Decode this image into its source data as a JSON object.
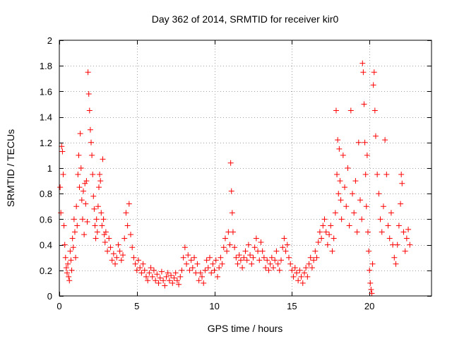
{
  "chart_data": {
    "type": "scatter",
    "title": "Day 362 of 2014, SRMTID for receiver kir0",
    "xlabel": "GPS time / hours",
    "ylabel": "SRMTID / TECUs",
    "xlim": [
      0,
      24
    ],
    "ylim": [
      0,
      2
    ],
    "xticks": [
      0,
      5,
      10,
      15,
      20
    ],
    "xtick_labels": [
      "0",
      "5",
      "10",
      "15",
      "20"
    ],
    "yticks": [
      0,
      0.2,
      0.4,
      0.6,
      0.8,
      1,
      1.2,
      1.4,
      1.6,
      1.8,
      2
    ],
    "ytick_labels": [
      "0",
      "0.2",
      "0.4",
      "0.6",
      "0.8",
      "1",
      "1.2",
      "1.4",
      "1.6",
      "1.8",
      "2"
    ],
    "grid": true,
    "marker": "+",
    "series": [
      {
        "name": "SRMTID",
        "color": "#ff0000",
        "points": [
          [
            0.05,
            0.85
          ],
          [
            0.1,
            0.65
          ],
          [
            0.15,
            1.17
          ],
          [
            0.2,
            1.13
          ],
          [
            0.25,
            0.95
          ],
          [
            0.3,
            0.55
          ],
          [
            0.35,
            0.4
          ],
          [
            0.4,
            0.3
          ],
          [
            0.45,
            0.22
          ],
          [
            0.5,
            0.18
          ],
          [
            0.55,
            0.25
          ],
          [
            0.6,
            0.15
          ],
          [
            0.65,
            0.12
          ],
          [
            0.7,
            0.35
          ],
          [
            0.75,
            0.28
          ],
          [
            0.8,
            0.2
          ],
          [
            0.85,
            0.45
          ],
          [
            0.9,
            0.38
          ],
          [
            0.95,
            0.6
          ],
          [
            1.0,
            0.5
          ],
          [
            1.05,
            0.3
          ],
          [
            1.1,
            0.7
          ],
          [
            1.15,
            0.55
          ],
          [
            1.2,
            0.95
          ],
          [
            1.25,
            1.1
          ],
          [
            1.3,
            0.85
          ],
          [
            1.35,
            1.27
          ],
          [
            1.4,
            1.0
          ],
          [
            1.45,
            0.75
          ],
          [
            1.5,
            0.6
          ],
          [
            1.55,
            0.82
          ],
          [
            1.6,
            0.48
          ],
          [
            1.65,
            0.88
          ],
          [
            1.7,
            0.72
          ],
          [
            1.75,
            0.9
          ],
          [
            1.8,
            0.58
          ],
          [
            1.85,
            1.75
          ],
          [
            1.9,
            1.58
          ],
          [
            1.95,
            1.45
          ],
          [
            2.0,
            1.3
          ],
          [
            2.05,
            1.2
          ],
          [
            2.1,
            1.1
          ],
          [
            2.15,
            0.95
          ],
          [
            2.2,
            0.78
          ],
          [
            2.25,
            0.68
          ],
          [
            2.3,
            0.55
          ],
          [
            2.35,
            0.45
          ],
          [
            2.4,
            0.6
          ],
          [
            2.45,
            0.5
          ],
          [
            2.5,
            0.7
          ],
          [
            2.55,
            0.85
          ],
          [
            2.6,
            0.95
          ],
          [
            2.65,
            0.9
          ],
          [
            2.7,
            0.65
          ],
          [
            2.75,
            0.55
          ],
          [
            2.8,
            1.07
          ],
          [
            2.85,
            0.6
          ],
          [
            2.9,
            0.48
          ],
          [
            2.95,
            0.42
          ],
          [
            3.0,
            0.5
          ],
          [
            3.1,
            0.35
          ],
          [
            3.2,
            0.45
          ],
          [
            3.3,
            0.38
          ],
          [
            3.4,
            0.28
          ],
          [
            3.5,
            0.33
          ],
          [
            3.6,
            0.25
          ],
          [
            3.7,
            0.3
          ],
          [
            3.8,
            0.4
          ],
          [
            3.9,
            0.35
          ],
          [
            4.0,
            0.28
          ],
          [
            4.1,
            0.32
          ],
          [
            4.2,
            0.45
          ],
          [
            4.3,
            0.65
          ],
          [
            4.4,
            0.55
          ],
          [
            4.5,
            0.72
          ],
          [
            4.6,
            0.48
          ],
          [
            4.7,
            0.38
          ],
          [
            4.8,
            0.3
          ],
          [
            4.9,
            0.25
          ],
          [
            5.0,
            0.2
          ],
          [
            5.1,
            0.28
          ],
          [
            5.2,
            0.22
          ],
          [
            5.3,
            0.18
          ],
          [
            5.4,
            0.25
          ],
          [
            5.5,
            0.2
          ],
          [
            5.6,
            0.15
          ],
          [
            5.7,
            0.12
          ],
          [
            5.8,
            0.18
          ],
          [
            5.9,
            0.22
          ],
          [
            6.0,
            0.15
          ],
          [
            6.1,
            0.2
          ],
          [
            6.2,
            0.12
          ],
          [
            6.3,
            0.17
          ],
          [
            6.4,
            0.1
          ],
          [
            6.5,
            0.14
          ],
          [
            6.6,
            0.19
          ],
          [
            6.7,
            0.12
          ],
          [
            6.8,
            0.08
          ],
          [
            6.9,
            0.15
          ],
          [
            7.0,
            0.18
          ],
          [
            7.1,
            0.12
          ],
          [
            7.2,
            0.16
          ],
          [
            7.3,
            0.1
          ],
          [
            7.4,
            0.14
          ],
          [
            7.5,
            0.18
          ],
          [
            7.6,
            0.12
          ],
          [
            7.7,
            0.09
          ],
          [
            7.8,
            0.15
          ],
          [
            7.9,
            0.2
          ],
          [
            8.0,
            0.3
          ],
          [
            8.1,
            0.38
          ],
          [
            8.2,
            0.25
          ],
          [
            8.3,
            0.32
          ],
          [
            8.4,
            0.2
          ],
          [
            8.5,
            0.28
          ],
          [
            8.6,
            0.22
          ],
          [
            8.7,
            0.3
          ],
          [
            8.8,
            0.18
          ],
          [
            8.9,
            0.25
          ],
          [
            9.0,
            0.12
          ],
          [
            9.1,
            0.18
          ],
          [
            9.2,
            0.15
          ],
          [
            9.3,
            0.1
          ],
          [
            9.4,
            0.2
          ],
          [
            9.5,
            0.28
          ],
          [
            9.6,
            0.22
          ],
          [
            9.7,
            0.3
          ],
          [
            9.8,
            0.18
          ],
          [
            9.9,
            0.25
          ],
          [
            10.0,
            0.2
          ],
          [
            10.1,
            0.28
          ],
          [
            10.2,
            0.15
          ],
          [
            10.3,
            0.22
          ],
          [
            10.4,
            0.3
          ],
          [
            10.5,
            0.25
          ],
          [
            10.6,
            0.38
          ],
          [
            10.7,
            0.45
          ],
          [
            10.8,
            0.35
          ],
          [
            10.9,
            0.5
          ],
          [
            11.0,
            0.4
          ],
          [
            11.05,
            1.04
          ],
          [
            11.1,
            0.82
          ],
          [
            11.15,
            0.65
          ],
          [
            11.2,
            0.5
          ],
          [
            11.3,
            0.38
          ],
          [
            11.4,
            0.3
          ],
          [
            11.5,
            0.25
          ],
          [
            11.6,
            0.32
          ],
          [
            11.7,
            0.28
          ],
          [
            11.8,
            0.22
          ],
          [
            11.9,
            0.3
          ],
          [
            12.0,
            0.35
          ],
          [
            12.1,
            0.28
          ],
          [
            12.2,
            0.4
          ],
          [
            12.3,
            0.32
          ],
          [
            12.4,
            0.25
          ],
          [
            12.5,
            0.3
          ],
          [
            12.6,
            0.38
          ],
          [
            12.7,
            0.45
          ],
          [
            12.8,
            0.35
          ],
          [
            12.9,
            0.28
          ],
          [
            13.0,
            0.42
          ],
          [
            13.1,
            0.35
          ],
          [
            13.2,
            0.3
          ],
          [
            13.3,
            0.22
          ],
          [
            13.4,
            0.28
          ],
          [
            13.5,
            0.2
          ],
          [
            13.6,
            0.25
          ],
          [
            13.7,
            0.3
          ],
          [
            13.8,
            0.22
          ],
          [
            13.9,
            0.28
          ],
          [
            14.0,
            0.35
          ],
          [
            14.1,
            0.25
          ],
          [
            14.2,
            0.2
          ],
          [
            14.3,
            0.28
          ],
          [
            14.4,
            0.38
          ],
          [
            14.5,
            0.45
          ],
          [
            14.6,
            0.35
          ],
          [
            14.7,
            0.4
          ],
          [
            14.8,
            0.3
          ],
          [
            14.9,
            0.25
          ],
          [
            15.0,
            0.2
          ],
          [
            15.1,
            0.15
          ],
          [
            15.2,
            0.22
          ],
          [
            15.3,
            0.18
          ],
          [
            15.4,
            0.12
          ],
          [
            15.5,
            0.2
          ],
          [
            15.6,
            0.15
          ],
          [
            15.7,
            0.1
          ],
          [
            15.8,
            0.18
          ],
          [
            15.9,
            0.22
          ],
          [
            16.0,
            0.15
          ],
          [
            16.1,
            0.25
          ],
          [
            16.2,
            0.3
          ],
          [
            16.3,
            0.22
          ],
          [
            16.4,
            0.28
          ],
          [
            16.5,
            0.35
          ],
          [
            16.6,
            0.3
          ],
          [
            16.7,
            0.42
          ],
          [
            16.8,
            0.5
          ],
          [
            16.9,
            0.45
          ],
          [
            17.0,
            0.55
          ],
          [
            17.1,
            0.6
          ],
          [
            17.2,
            0.5
          ],
          [
            17.3,
            0.4
          ],
          [
            17.4,
            0.48
          ],
          [
            17.5,
            0.55
          ],
          [
            17.6,
            0.35
          ],
          [
            17.7,
            0.45
          ],
          [
            17.8,
            0.65
          ],
          [
            17.85,
            1.45
          ],
          [
            17.9,
            0.95
          ],
          [
            17.95,
            1.22
          ],
          [
            18.0,
            0.8
          ],
          [
            18.05,
            1.15
          ],
          [
            18.1,
            0.9
          ],
          [
            18.15,
            0.75
          ],
          [
            18.2,
            0.6
          ],
          [
            18.3,
            1.1
          ],
          [
            18.4,
            0.85
          ],
          [
            18.5,
            0.7
          ],
          [
            18.6,
            1.0
          ],
          [
            18.7,
            0.55
          ],
          [
            18.8,
            1.45
          ],
          [
            18.9,
            0.8
          ],
          [
            19.0,
            0.65
          ],
          [
            19.1,
            0.9
          ],
          [
            19.2,
            0.5
          ],
          [
            19.3,
            1.2
          ],
          [
            19.4,
            0.75
          ],
          [
            19.5,
            0.6
          ],
          [
            19.55,
            1.82
          ],
          [
            19.6,
            1.75
          ],
          [
            19.65,
            1.5
          ],
          [
            19.7,
            1.2
          ],
          [
            19.75,
            0.95
          ],
          [
            19.8,
            0.7
          ],
          [
            19.85,
            1.1
          ],
          [
            19.9,
            0.5
          ],
          [
            19.95,
            0.35
          ],
          [
            20.0,
            0.2
          ],
          [
            20.05,
            0.1
          ],
          [
            20.1,
            0.05
          ],
          [
            20.15,
            0.02
          ],
          [
            20.2,
            0.25
          ],
          [
            20.25,
            1.65
          ],
          [
            20.3,
            1.75
          ],
          [
            20.35,
            1.45
          ],
          [
            20.4,
            1.25
          ],
          [
            20.5,
            0.95
          ],
          [
            20.6,
            0.8
          ],
          [
            20.7,
            0.6
          ],
          [
            20.8,
            0.5
          ],
          [
            20.9,
            0.7
          ],
          [
            21.0,
            1.22
          ],
          [
            21.1,
            0.95
          ],
          [
            21.2,
            0.55
          ],
          [
            21.3,
            0.45
          ],
          [
            21.4,
            0.65
          ],
          [
            21.5,
            0.4
          ],
          [
            21.6,
            0.3
          ],
          [
            21.7,
            0.25
          ],
          [
            21.8,
            0.4
          ],
          [
            21.9,
            0.55
          ],
          [
            22.0,
            0.72
          ],
          [
            22.05,
            0.95
          ],
          [
            22.1,
            0.88
          ],
          [
            22.2,
            0.5
          ],
          [
            22.3,
            0.35
          ],
          [
            22.4,
            0.45
          ],
          [
            22.5,
            0.52
          ],
          [
            22.6,
            0.4
          ]
        ]
      }
    ]
  }
}
